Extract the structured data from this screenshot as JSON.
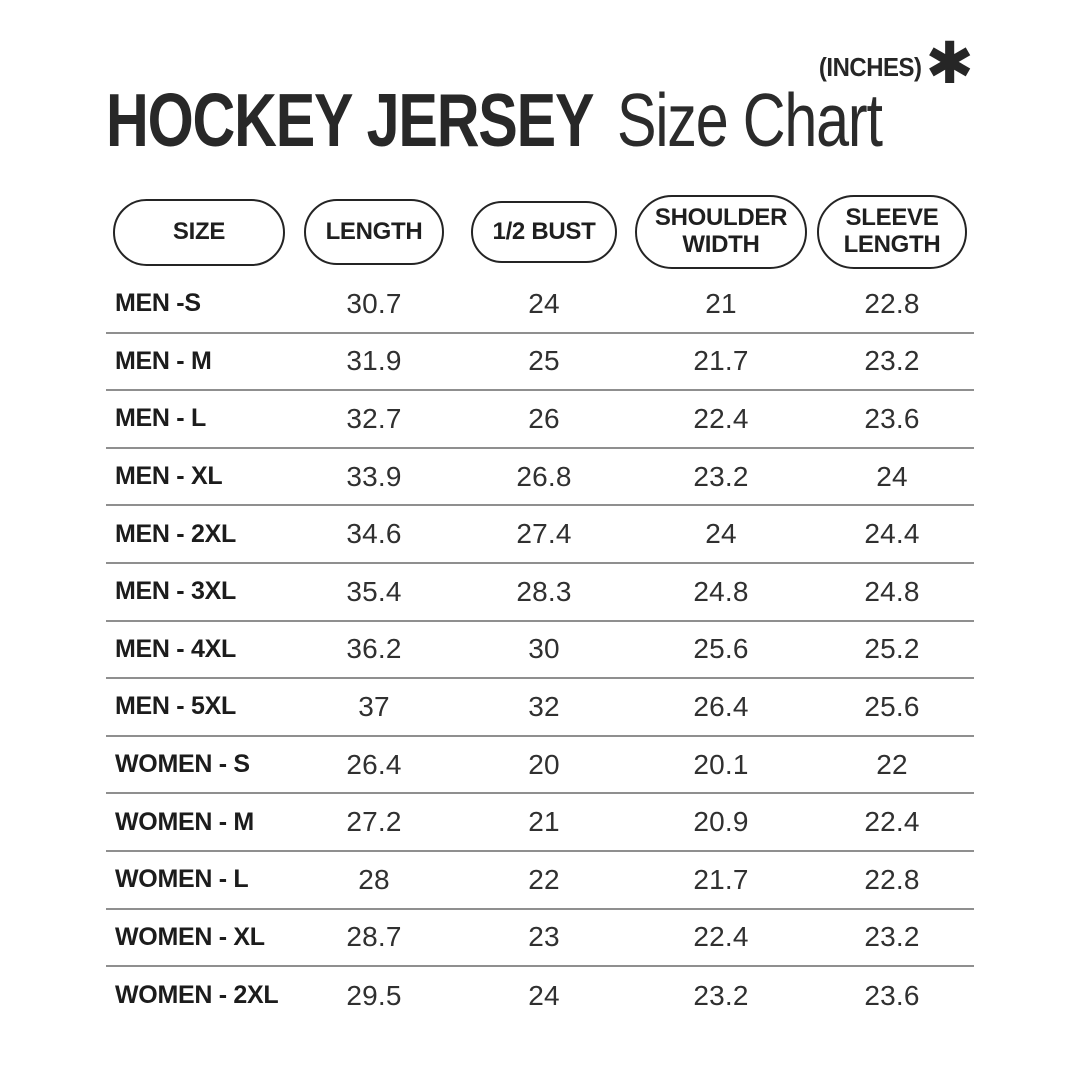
{
  "header": {
    "title_bold": "HOCKEY JERSEY",
    "title_light": "Size Chart",
    "unit_label": "(INCHES)",
    "asterisk_icon": "✱"
  },
  "table": {
    "columns": [
      "SIZE",
      "LENGTH",
      "1/2 BUST",
      "SHOULDER WIDTH",
      "SLEEVE LENGTH"
    ],
    "rows": [
      {
        "label": "MEN -S",
        "values": [
          "30.7",
          "24",
          "21",
          "22.8"
        ]
      },
      {
        "label": "MEN - M",
        "values": [
          "31.9",
          "25",
          "21.7",
          "23.2"
        ]
      },
      {
        "label": "MEN - L",
        "values": [
          "32.7",
          "26",
          "22.4",
          "23.6"
        ]
      },
      {
        "label": "MEN - XL",
        "values": [
          "33.9",
          "26.8",
          "23.2",
          "24"
        ]
      },
      {
        "label": "MEN - 2XL",
        "values": [
          "34.6",
          "27.4",
          "24",
          "24.4"
        ]
      },
      {
        "label": "MEN - 3XL",
        "values": [
          "35.4",
          "28.3",
          "24.8",
          "24.8"
        ]
      },
      {
        "label": "MEN - 4XL",
        "values": [
          "36.2",
          "30",
          "25.6",
          "25.2"
        ]
      },
      {
        "label": "MEN - 5XL",
        "values": [
          "37",
          "32",
          "26.4",
          "25.6"
        ]
      },
      {
        "label": "WOMEN - S",
        "values": [
          "26.4",
          "20",
          "20.1",
          "22"
        ]
      },
      {
        "label": "WOMEN - M",
        "values": [
          "27.2",
          "21",
          "20.9",
          "22.4"
        ]
      },
      {
        "label": "WOMEN - L",
        "values": [
          "28",
          "22",
          "21.7",
          "22.8"
        ]
      },
      {
        "label": "WOMEN - XL",
        "values": [
          "28.7",
          "23",
          "22.4",
          "23.2"
        ]
      },
      {
        "label": "WOMEN - 2XL",
        "values": [
          "29.5",
          "24",
          "23.2",
          "23.6"
        ]
      }
    ]
  },
  "colors": {
    "text": "#242424",
    "separator_line": "#8f8f8f",
    "background": "#ffffff"
  },
  "chart_data": {
    "type": "table",
    "title": "HOCKEY JERSEY Size Chart",
    "unit": "(INCHES)",
    "columns": [
      "SIZE",
      "LENGTH",
      "1/2 BUST",
      "SHOULDER WIDTH",
      "SLEEVE LENGTH"
    ],
    "rows": [
      [
        "MEN -S",
        30.7,
        24,
        21,
        22.8
      ],
      [
        "MEN - M",
        31.9,
        25,
        21.7,
        23.2
      ],
      [
        "MEN - L",
        32.7,
        26,
        22.4,
        23.6
      ],
      [
        "MEN - XL",
        33.9,
        26.8,
        23.2,
        24
      ],
      [
        "MEN - 2XL",
        34.6,
        27.4,
        24,
        24.4
      ],
      [
        "MEN - 3XL",
        35.4,
        28.3,
        24.8,
        24.8
      ],
      [
        "MEN - 4XL",
        36.2,
        30,
        25.6,
        25.2
      ],
      [
        "MEN - 5XL",
        37,
        32,
        26.4,
        25.6
      ],
      [
        "WOMEN - S",
        26.4,
        20,
        20.1,
        22
      ],
      [
        "WOMEN - M",
        27.2,
        21,
        20.9,
        22.4
      ],
      [
        "WOMEN - L",
        28,
        22,
        21.7,
        22.8
      ],
      [
        "WOMEN - XL",
        28.7,
        23,
        22.4,
        23.2
      ],
      [
        "WOMEN - 2XL",
        29.5,
        24,
        23.2,
        23.6
      ]
    ]
  }
}
